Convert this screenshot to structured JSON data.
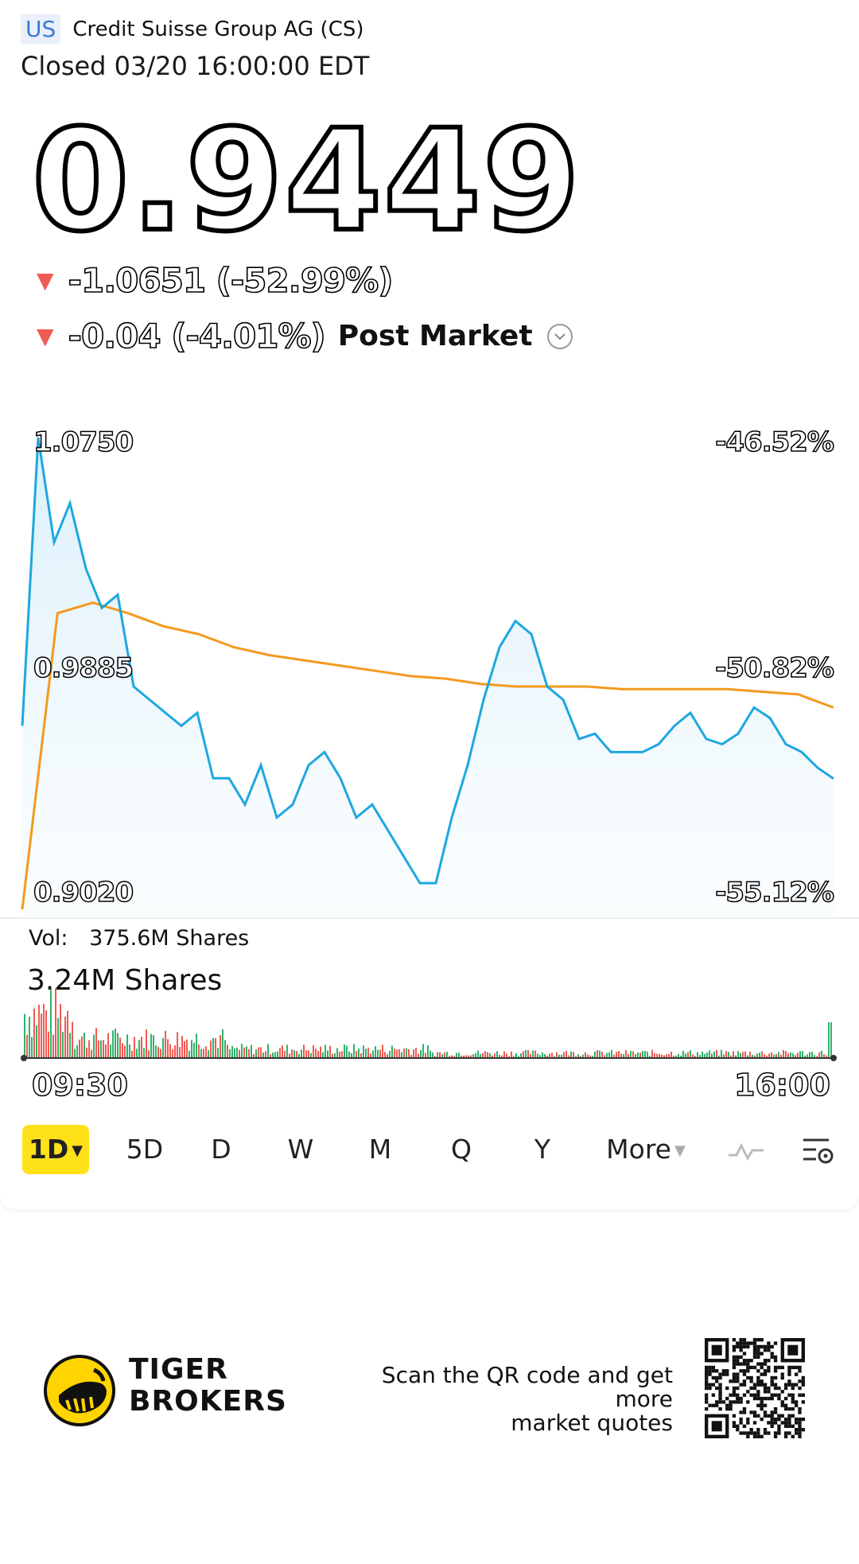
{
  "header": {
    "market": "US",
    "company": "Credit Suisse Group AG (CS)",
    "status": "Closed 03/20 16:00:00 EDT"
  },
  "quote": {
    "price": "0.9449",
    "change": "-1.0651 (-52.99%)",
    "post_change": "-0.04 (-4.01%)",
    "post_label": "Post Market"
  },
  "chart": {
    "left_high": "1.0750",
    "left_mid": "0.9885",
    "left_low": "0.9020",
    "right_high": "-46.52%",
    "right_mid": "-50.82%",
    "right_low": "-55.12%",
    "line_color": "#1ea7e0",
    "avg_color": "#f39a1e"
  },
  "volume": {
    "label": "Vol:",
    "value": "375.6M Shares",
    "max_label": "3.24M Shares",
    "up_color": "#2fb36b",
    "down_color": "#f05a52"
  },
  "time_axis": {
    "start": "09:30",
    "end": "16:00"
  },
  "periods": [
    {
      "label": "1D",
      "active": true
    },
    {
      "label": "5D"
    },
    {
      "label": "D"
    },
    {
      "label": "W"
    },
    {
      "label": "M"
    },
    {
      "label": "Q"
    },
    {
      "label": "Y"
    },
    {
      "label": "More"
    }
  ],
  "footer": {
    "brand_line1": "TIGER",
    "brand_line2": "BROKERS",
    "scan_line1": "Scan the QR code and get more",
    "scan_line2": "market quotes"
  },
  "chart_data": {
    "type": "line",
    "x_range": [
      "09:30",
      "16:00"
    ],
    "ylim": [
      0.902,
      1.075
    ],
    "series": [
      {
        "values": [
          0.965,
          1.075,
          1.035,
          1.05,
          1.025,
          1.01,
          1.015,
          0.98,
          0.975,
          0.97,
          0.965,
          0.97,
          0.945,
          0.945,
          0.935,
          0.95,
          0.93,
          0.935,
          0.95,
          0.955,
          0.945,
          0.93,
          0.935,
          0.925,
          0.915,
          0.905,
          0.905,
          0.93,
          0.95,
          0.975,
          0.995,
          1.005,
          1.0,
          0.98,
          0.975,
          0.96,
          0.962,
          0.955,
          0.955,
          0.955,
          0.958,
          0.965,
          0.97,
          0.96,
          0.958,
          0.962,
          0.972,
          0.968,
          0.958,
          0.955,
          0.949,
          0.9449
        ]
      },
      {
        "values": [
          0.895,
          1.008,
          1.012,
          1.008,
          1.003,
          1.0,
          0.995,
          0.992,
          0.99,
          0.988,
          0.986,
          0.984,
          0.983,
          0.981,
          0.98,
          0.98,
          0.98,
          0.979,
          0.979,
          0.979,
          0.979,
          0.978,
          0.977,
          0.972
        ]
      }
    ],
    "volume_max": "3.24M"
  }
}
